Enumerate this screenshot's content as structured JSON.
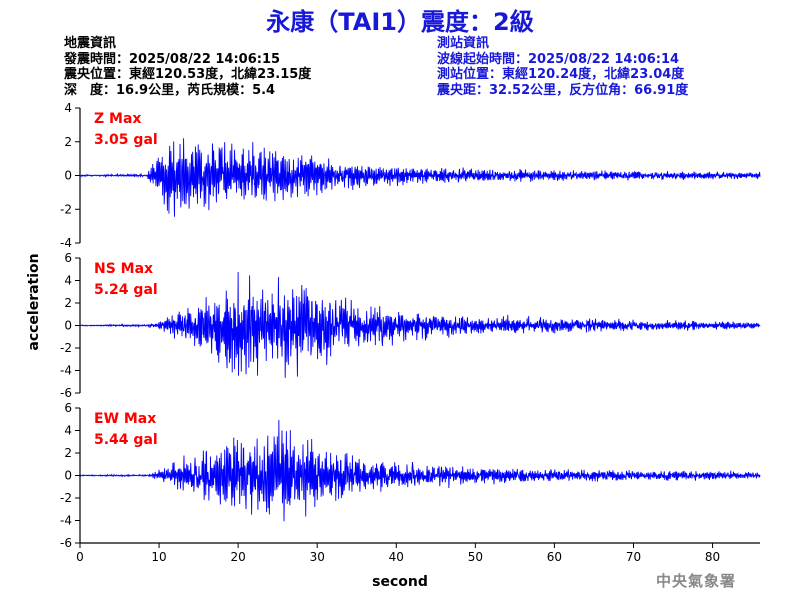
{
  "header": {
    "title": "永康（TAI1）震度：2級"
  },
  "event_info": {
    "heading": "地震資訊",
    "origin_time": "發震時間：2025/08/22 14:06:15",
    "epicenter": "震央位置：東經120.53度，北緯23.15度",
    "depth_magnitude": "深　度：16.9公里，芮氏規模：5.4"
  },
  "station_info": {
    "heading": "測站資訊",
    "wave_start": "波線起始時間：2025/08/22 14:06:14",
    "station_location": "測站位置：東經120.24度，北緯23.04度",
    "distance_azimuth": "震央距：32.52公里，反方位角：66.91度"
  },
  "footer": {
    "credit": "中央氣象署"
  },
  "chart_data": {
    "type": "line",
    "xlabel": "second",
    "ylabel": "acceleration",
    "xlim": [
      0,
      86
    ],
    "xticks": [
      0,
      10,
      20,
      30,
      40,
      50,
      60,
      70,
      80
    ],
    "line_color": "#0000ff",
    "label_color": "#ff0000",
    "grid": false,
    "panels": [
      {
        "component": "Z",
        "max_label": "Z Max",
        "max_value": "3.05 gal",
        "ylim": [
          -4,
          4
        ],
        "yticks": [
          -4,
          -2,
          0,
          2,
          4
        ],
        "envelope": [
          [
            0,
            0.05
          ],
          [
            8.5,
            0.08
          ],
          [
            9.5,
            1.2
          ],
          [
            10.5,
            2.2
          ],
          [
            11.5,
            2.8
          ],
          [
            13,
            2.4
          ],
          [
            15,
            2.2
          ],
          [
            17,
            2.1
          ],
          [
            19,
            2.0
          ],
          [
            21,
            1.9
          ],
          [
            23,
            1.8
          ],
          [
            25,
            1.6
          ],
          [
            27,
            1.4
          ],
          [
            30,
            1.2
          ],
          [
            33,
            1.0
          ],
          [
            36,
            0.8
          ],
          [
            40,
            0.6
          ],
          [
            45,
            0.5
          ],
          [
            50,
            0.45
          ],
          [
            55,
            0.4
          ],
          [
            60,
            0.35
          ],
          [
            65,
            0.3
          ],
          [
            70,
            0.28
          ],
          [
            75,
            0.25
          ],
          [
            80,
            0.22
          ],
          [
            86,
            0.2
          ]
        ]
      },
      {
        "component": "NS",
        "max_label": "NS Max",
        "max_value": "5.24 gal",
        "ylim": [
          -6,
          6
        ],
        "yticks": [
          -6,
          -4,
          -2,
          0,
          2,
          4,
          6
        ],
        "envelope": [
          [
            0,
            0.05
          ],
          [
            8.5,
            0.1
          ],
          [
            10,
            0.5
          ],
          [
            12,
            1.2
          ],
          [
            14,
            2.0
          ],
          [
            16,
            2.8
          ],
          [
            18,
            3.8
          ],
          [
            20,
            4.5
          ],
          [
            22,
            4.6
          ],
          [
            24,
            4.0
          ],
          [
            26,
            4.8
          ],
          [
            28,
            4.2
          ],
          [
            30,
            3.5
          ],
          [
            32,
            3.0
          ],
          [
            35,
            2.4
          ],
          [
            38,
            1.8
          ],
          [
            42,
            1.3
          ],
          [
            46,
            1.1
          ],
          [
            50,
            0.9
          ],
          [
            55,
            0.8
          ],
          [
            60,
            0.7
          ],
          [
            65,
            0.6
          ],
          [
            70,
            0.5
          ],
          [
            75,
            0.45
          ],
          [
            80,
            0.4
          ],
          [
            86,
            0.35
          ]
        ]
      },
      {
        "component": "EW",
        "max_label": "EW Max",
        "max_value": "5.44 gal",
        "ylim": [
          -6,
          6
        ],
        "yticks": [
          -6,
          -4,
          -2,
          0,
          2,
          4,
          6
        ],
        "envelope": [
          [
            0,
            0.05
          ],
          [
            8.5,
            0.1
          ],
          [
            10,
            0.5
          ],
          [
            12,
            1.2
          ],
          [
            14,
            1.9
          ],
          [
            16,
            2.6
          ],
          [
            18,
            3.2
          ],
          [
            20,
            3.5
          ],
          [
            22,
            3.4
          ],
          [
            24,
            4.0
          ],
          [
            25.5,
            5.2
          ],
          [
            27,
            3.6
          ],
          [
            29,
            3.2
          ],
          [
            31,
            2.6
          ],
          [
            34,
            2.0
          ],
          [
            37,
            1.6
          ],
          [
            40,
            1.3
          ],
          [
            44,
            1.0
          ],
          [
            48,
            0.9
          ],
          [
            52,
            0.8
          ],
          [
            56,
            0.7
          ],
          [
            60,
            0.6
          ],
          [
            65,
            0.55
          ],
          [
            70,
            0.5
          ],
          [
            75,
            0.45
          ],
          [
            80,
            0.4
          ],
          [
            86,
            0.35
          ]
        ]
      }
    ]
  }
}
